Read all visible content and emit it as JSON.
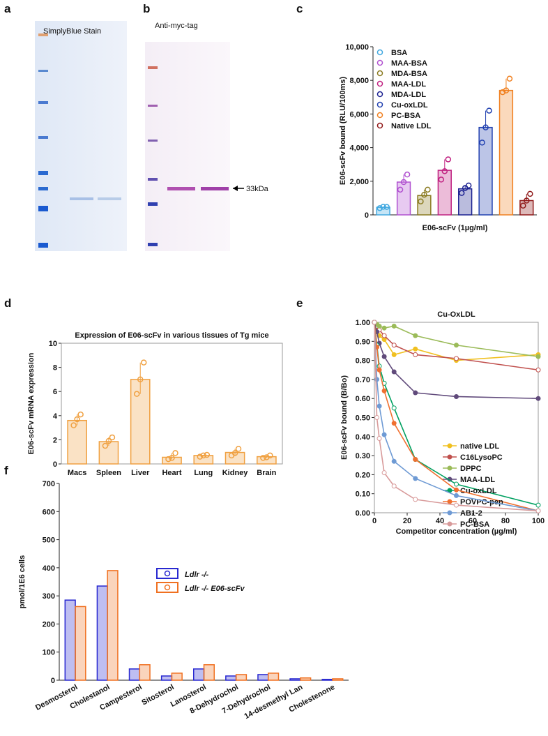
{
  "gels": [
    {
      "label": "a",
      "title": "SimplyBlue Stain"
    },
    {
      "label": "b",
      "title": "Anti-myc-tag",
      "marker": "33kDa"
    }
  ],
  "chart_data": [
    {
      "type": "bar",
      "label": "c",
      "ylabel": "E06-scFv bound (RLU/100ms)",
      "xlabel": "E06-scFv (1µg/ml)",
      "ylim": [
        0,
        10000
      ],
      "yticks": [
        0,
        {
          "value": 2000,
          "label": "2,000"
        },
        {
          "value": 4000,
          "label": "4,000"
        },
        {
          "value": 6000,
          "label": "6,000"
        },
        {
          "value": 8000,
          "label": "8,000"
        },
        {
          "value": 10000,
          "label": "10,000"
        }
      ],
      "series": [
        {
          "name": "BSA",
          "color": "#40a8e0",
          "values": [
            450
          ],
          "points": [
            400,
            480,
            470
          ]
        },
        {
          "name": "MAA-BSA",
          "color": "#b050d0",
          "values": [
            1950
          ],
          "points": [
            1500,
            1950,
            2400
          ]
        },
        {
          "name": "MDA-BSA",
          "color": "#8a7a20",
          "values": [
            1150
          ],
          "points": [
            800,
            1200,
            1500
          ]
        },
        {
          "name": "MAA-LDL",
          "color": "#c02080",
          "values": [
            2650
          ],
          "points": [
            2100,
            2600,
            3300
          ]
        },
        {
          "name": "MDA-LDL",
          "color": "#1a2090",
          "values": [
            1550
          ],
          "points": [
            1300,
            1600,
            1750
          ]
        },
        {
          "name": "Cu-oxLDL",
          "color": "#2040b0",
          "values": [
            5200
          ],
          "points": [
            4300,
            5200,
            6200
          ]
        },
        {
          "name": "PC-BSA",
          "color": "#f08020",
          "values": [
            7400
          ],
          "points": [
            7300,
            7400,
            8100
          ]
        },
        {
          "name": "Native LDL",
          "color": "#901818",
          "values": [
            850
          ],
          "points": [
            550,
            850,
            1250
          ]
        }
      ]
    },
    {
      "type": "bar",
      "label": "d",
      "title": "Expression of E06-scFv in various tissues of Tg mice",
      "ylabel": "E06-scFv mRNA expression",
      "categories": [
        "Macs",
        "Spleen",
        "Liver",
        "Heart",
        "Lung",
        "Kidney",
        "Brain"
      ],
      "values": [
        3.6,
        1.85,
        7.0,
        0.55,
        0.7,
        0.95,
        0.6
      ],
      "points": [
        [
          3.2,
          3.7,
          4.1
        ],
        [
          1.5,
          1.9,
          2.2
        ],
        [
          5.8,
          7.0,
          8.4
        ],
        [
          0.4,
          0.5,
          0.9
        ],
        [
          0.6,
          0.7,
          0.75
        ],
        [
          0.7,
          0.9,
          1.25
        ],
        [
          0.5,
          0.55,
          0.7
        ]
      ],
      "color": "#f0a040",
      "ylim": [
        0,
        10
      ],
      "yticks": [
        0,
        2,
        4,
        6,
        8,
        10
      ]
    },
    {
      "type": "line",
      "label": "e",
      "title": "Cu-OxLDL",
      "ylabel": "E06-scFv bound (B/Bo)",
      "xlabel": "Competitor concentration  (µg/ml)",
      "x": [
        0,
        1.5,
        3,
        6,
        12,
        25,
        50,
        100
      ],
      "xlim": [
        0,
        100
      ],
      "xticks": [
        0,
        20,
        40,
        60,
        80,
        100
      ],
      "ylim": [
        0,
        1
      ],
      "yticks": [
        {
          "value": 0,
          "label": "0.00"
        },
        {
          "value": 0.1,
          "label": "0.10"
        },
        {
          "value": 0.2,
          "label": "0.20"
        },
        {
          "value": 0.3,
          "label": "0.30"
        },
        {
          "value": 0.4,
          "label": "0.40"
        },
        {
          "value": 0.5,
          "label": "0.50"
        },
        {
          "value": 0.6,
          "label": "0.60"
        },
        {
          "value": 0.7,
          "label": "0.70"
        },
        {
          "value": 0.8,
          "label": "0.80"
        },
        {
          "value": 0.9,
          "label": "0.90"
        },
        {
          "value": 1,
          "label": "1.00"
        }
      ],
      "series": [
        {
          "name": "native LDL",
          "color": "#f0c020",
          "values": [
            1.0,
            0.97,
            0.93,
            0.91,
            0.83,
            0.86,
            0.8,
            0.83
          ]
        },
        {
          "name": "C16LysoPC",
          "color": "#c0504d",
          "values": [
            1.0,
            0.98,
            0.96,
            0.93,
            0.88,
            0.83,
            0.81,
            0.75
          ]
        },
        {
          "name": "DPPC",
          "color": "#9bbb59",
          "values": [
            1.0,
            0.99,
            0.98,
            0.97,
            0.98,
            0.93,
            0.88,
            0.82
          ]
        },
        {
          "name": "MAA-LDL",
          "color": "#604a7b",
          "values": [
            1.0,
            0.95,
            0.89,
            0.82,
            0.74,
            0.63,
            0.61,
            0.6
          ]
        },
        {
          "name": "Cu-oxLDL",
          "color": "#00a060",
          "values": [
            1.0,
            0.88,
            0.77,
            0.68,
            0.55,
            0.28,
            0.15,
            0.04
          ]
        },
        {
          "name": "POVPC-pep",
          "color": "#f07030",
          "values": [
            1.0,
            0.87,
            0.75,
            0.64,
            0.47,
            0.28,
            0.12,
            0.01
          ]
        },
        {
          "name": "AB1-2",
          "color": "#6e9ad4",
          "values": [
            1.0,
            0.7,
            0.56,
            0.41,
            0.27,
            0.18,
            0.09,
            0.01
          ]
        },
        {
          "name": "PC-BSA",
          "color": "#d89a9a",
          "values": [
            1.0,
            0.5,
            0.39,
            0.21,
            0.14,
            0.07,
            0.04,
            0.01
          ]
        }
      ]
    },
    {
      "type": "groupedbar",
      "label": "f",
      "ylabel": "pmol/1E6 cells",
      "categories": [
        "Desmosterol",
        "Cholestanol",
        "Campesterol",
        "Sitosterol",
        "Lanosterol",
        "8-Dehydrochol",
        "7-Dehydrochol",
        "14-desmethyl Lan",
        "Cholestenone"
      ],
      "ylim": [
        0,
        700
      ],
      "yticks": [
        0,
        100,
        200,
        300,
        400,
        500,
        600,
        700
      ],
      "series": [
        {
          "name": "Ldlr -/-",
          "color": "#2828d0",
          "values": [
            285,
            335,
            40,
            15,
            40,
            15,
            20,
            5,
            3
          ]
        },
        {
          "name": "Ldlr -/- E06-scFv",
          "color": "#f07020",
          "values": [
            262,
            390,
            55,
            25,
            55,
            20,
            25,
            8,
            5
          ]
        }
      ]
    }
  ]
}
